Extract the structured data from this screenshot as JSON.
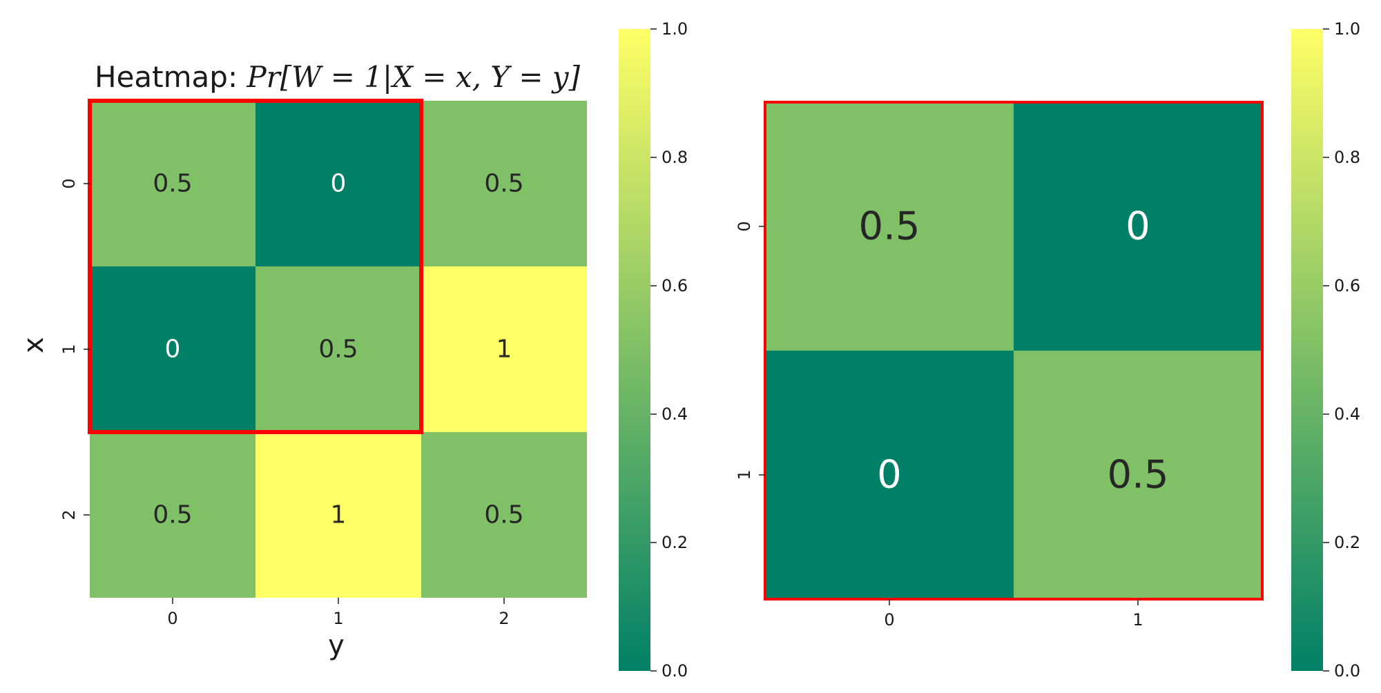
{
  "chart_data": [
    {
      "type": "heatmap",
      "title_prefix": "Heatmap: ",
      "title_math": "Pr[W = 1|X = x, Y = y]",
      "xlabel": "y",
      "ylabel": "x",
      "x_categories": [
        "0",
        "1",
        "2"
      ],
      "y_categories": [
        "0",
        "1",
        "2"
      ],
      "values": [
        [
          0.5,
          0,
          0.5
        ],
        [
          0,
          0.5,
          1
        ],
        [
          0.5,
          1,
          0.5
        ]
      ],
      "cell_labels": [
        [
          "0.5",
          "0",
          "0.5"
        ],
        [
          "0",
          "0.5",
          "1"
        ],
        [
          "0.5",
          "1",
          "0.5"
        ]
      ],
      "highlight": {
        "rows": [
          0,
          1
        ],
        "cols": [
          0,
          1
        ],
        "color": "#ff0000"
      },
      "colorbar": {
        "range": [
          0,
          1
        ],
        "ticks": [
          "0.0",
          "0.2",
          "0.4",
          "0.6",
          "0.8",
          "1.0"
        ],
        "colormap": "summer"
      }
    },
    {
      "type": "heatmap",
      "title": "",
      "xlabel": "",
      "ylabel": "",
      "x_categories": [
        "0",
        "1"
      ],
      "y_categories": [
        "0",
        "1"
      ],
      "values": [
        [
          0.5,
          0
        ],
        [
          0,
          0.5
        ]
      ],
      "cell_labels": [
        [
          "0.5",
          "0"
        ],
        [
          "0",
          "0.5"
        ]
      ],
      "highlight": {
        "rows": [
          0,
          1
        ],
        "cols": [
          0,
          1
        ],
        "color": "#ff0000"
      },
      "colorbar": {
        "range": [
          0,
          1
        ],
        "ticks": [
          "0.0",
          "0.2",
          "0.4",
          "0.6",
          "0.8",
          "1.0"
        ],
        "colormap": "summer"
      }
    }
  ],
  "colors": {
    "low": "#008066",
    "high": "#ffff66",
    "highlight": "#ff0000",
    "dark_text": "#262626",
    "light_text": "#ffffff"
  }
}
